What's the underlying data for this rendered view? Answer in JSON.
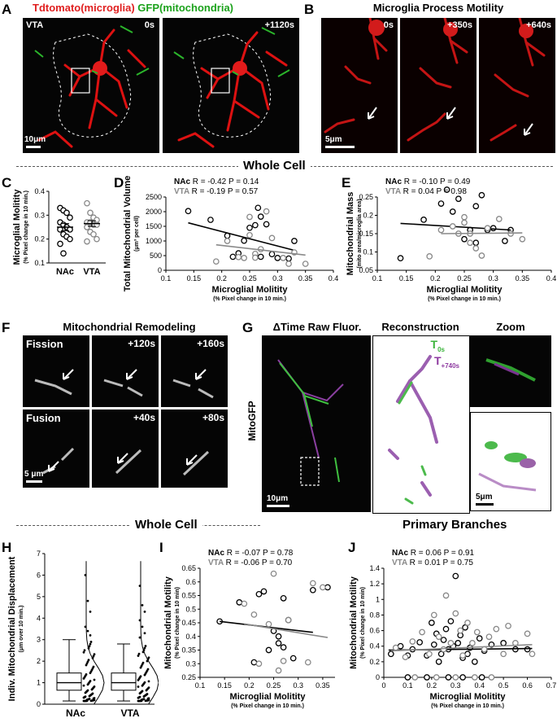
{
  "panels": {
    "A": "A",
    "B": "B",
    "C": "C",
    "D": "D",
    "E": "E",
    "F": "F",
    "G": "G",
    "H": "H",
    "I": "I",
    "J": "J"
  },
  "panelA": {
    "title_red": "Tdtomato(microglia)",
    "title_green": "GFP(mitochondria)",
    "region": "VTA",
    "t0": "0s",
    "t1": "+1120s",
    "scale": "10μm"
  },
  "panelB": {
    "title": "Microglia Process Motility",
    "times": [
      "0s",
      "+350s",
      "+640s"
    ],
    "scale": "5μm"
  },
  "sections": {
    "whole_cell_1": "Whole Cell",
    "whole_cell_2": "Whole Cell",
    "primary": "Primary Branches"
  },
  "panelF": {
    "title": "Mitochondrial Remodeling",
    "fission": "Fission",
    "fusion": "Fusion",
    "fission_times": [
      "+120s",
      "+160s"
    ],
    "fusion_times": [
      "+40s",
      "+80s"
    ],
    "scale": "5 μm"
  },
  "panelG": {
    "h1": "ΔTime Raw Fluor.",
    "h2": "Reconstruction",
    "h3": "Zoom",
    "side": "MitoGFP",
    "t_green": "T",
    "t_green_sub": "0s",
    "t_purple": "T",
    "t_purple_sub": "+740s",
    "scale": "10μm",
    "zoom_scale": "5μm"
  },
  "chart_data": [
    {
      "panel": "C",
      "type": "scatter",
      "ylabel": "Microglial Molitity",
      "ylabel_sub": "(% Pixel change in 10 min.)",
      "categories": [
        "NAc",
        "VTA"
      ],
      "ylim": [
        0.1,
        0.4
      ],
      "yticks": [
        "0.1",
        "0.2",
        "0.3",
        "0.4"
      ],
      "series": [
        {
          "name": "NAc",
          "color": "#000000",
          "values": [
            0.33,
            0.32,
            0.31,
            0.29,
            0.27,
            0.26,
            0.25,
            0.24,
            0.24,
            0.22,
            0.21,
            0.2,
            0.18,
            0.14
          ],
          "mean": 0.25,
          "sem": 0.015
        },
        {
          "name": "VTA",
          "color": "#888888",
          "values": [
            0.35,
            0.31,
            0.29,
            0.28,
            0.27,
            0.27,
            0.26,
            0.26,
            0.25,
            0.23,
            0.22,
            0.2,
            0.19
          ],
          "mean": 0.265,
          "sem": 0.012
        }
      ]
    },
    {
      "panel": "D",
      "type": "scatter",
      "title_nac": "NAc",
      "stats_nac": "R = -0.42 P = 0.14",
      "title_vta": "VTA",
      "stats_vta": "R = -0.19 P = 0.57",
      "xlabel": "Microglial Molitity",
      "xlabel_sub": "(% Pixel change in 10 min.)",
      "ylabel": "Total Mitochondrial Volume",
      "ylabel_sub": "(μm³ per cell)",
      "xlim": [
        0.1,
        0.4
      ],
      "ylim": [
        0,
        2500
      ],
      "xticks": [
        "0.1",
        "0.15",
        "0.2",
        "0.25",
        "0.3",
        "0.35",
        "0.4"
      ],
      "yticks": [
        "0",
        "500",
        "1000",
        "1500",
        "2000",
        "2500"
      ],
      "series": [
        {
          "name": "NAc",
          "color": "#000000",
          "x": [
            0.14,
            0.18,
            0.21,
            0.22,
            0.23,
            0.24,
            0.25,
            0.26,
            0.265,
            0.27,
            0.27,
            0.28,
            0.29,
            0.3,
            0.32,
            0.33
          ],
          "y": [
            2020,
            1720,
            1180,
            460,
            580,
            1010,
            1450,
            1540,
            2130,
            1830,
            460,
            1570,
            550,
            420,
            400,
            1000
          ],
          "fit": [
            [
              0.14,
              1620
            ],
            [
              0.33,
              680
            ]
          ]
        },
        {
          "name": "VTA",
          "color": "#888888",
          "x": [
            0.19,
            0.21,
            0.23,
            0.24,
            0.25,
            0.25,
            0.26,
            0.26,
            0.27,
            0.28,
            0.29,
            0.31,
            0.32,
            0.33,
            0.35
          ],
          "y": [
            300,
            1000,
            450,
            420,
            1820,
            1200,
            560,
            430,
            720,
            2010,
            1100,
            420,
            220,
            610,
            220
          ],
          "fit": [
            [
              0.19,
              870
            ],
            [
              0.35,
              520
            ]
          ]
        }
      ]
    },
    {
      "panel": "E",
      "type": "scatter",
      "title_nac": "NAc",
      "stats_nac": "R = -0.10 P = 0.49",
      "title_vta": "VTA",
      "stats_vta": "R = 0.04 P = 0.98",
      "xlabel": "Microglial Molitity",
      "xlabel_sub": "(% Pixel change in 10 min.)",
      "ylabel": "Mitochondrial Mass",
      "ylabel_sub": "(mito area/microglia area)",
      "xlim": [
        0.1,
        0.4
      ],
      "ylim": [
        0.05,
        0.25
      ],
      "xticks": [
        "0.1",
        "0.15",
        "0.2",
        "0.25",
        "0.3",
        "0.35",
        "0.4"
      ],
      "yticks": [
        "0.05",
        "0.1",
        "0.15",
        "0.2",
        "0.25"
      ],
      "series": [
        {
          "name": "NAc",
          "color": "#000000",
          "x": [
            0.14,
            0.18,
            0.21,
            0.22,
            0.23,
            0.24,
            0.25,
            0.26,
            0.27,
            0.27,
            0.28,
            0.29,
            0.3,
            0.32,
            0.33
          ],
          "y": [
            0.083,
            0.188,
            0.232,
            0.27,
            0.21,
            0.245,
            0.135,
            0.16,
            0.225,
            0.125,
            0.255,
            0.16,
            0.165,
            0.13,
            0.16
          ],
          "fit": [
            [
              0.14,
              0.178
            ],
            [
              0.33,
              0.16
            ]
          ]
        },
        {
          "name": "VTA",
          "color": "#888888",
          "x": [
            0.19,
            0.21,
            0.23,
            0.24,
            0.25,
            0.25,
            0.26,
            0.26,
            0.27,
            0.28,
            0.29,
            0.31,
            0.33,
            0.35
          ],
          "y": [
            0.088,
            0.16,
            0.17,
            0.15,
            0.195,
            0.18,
            0.15,
            0.125,
            0.11,
            0.09,
            0.165,
            0.19,
            0.15,
            0.135
          ],
          "fit": [
            [
              0.21,
              0.15
            ],
            [
              0.35,
              0.152
            ]
          ]
        }
      ]
    },
    {
      "panel": "H",
      "type": "box",
      "ylabel": "Indiv. Mitochondrial Displacement",
      "ylabel_sub": "(μm over 10 min.)",
      "categories": [
        "NAc",
        "VTA"
      ],
      "ylim": [
        0,
        7
      ],
      "yticks": [
        "0",
        "1",
        "2",
        "3",
        "4",
        "5",
        "6",
        "7"
      ],
      "boxes": [
        {
          "name": "NAc",
          "min": 0.15,
          "q1": 0.65,
          "median": 1.0,
          "q3": 1.45,
          "max": 3.0,
          "outliers": [
            6.0,
            4.8,
            4.3,
            3.6,
            3.4,
            3.2
          ]
        },
        {
          "name": "VTA",
          "min": 0.15,
          "q1": 0.65,
          "median": 1.0,
          "q3": 1.45,
          "max": 2.8,
          "outliers": [
            5.5,
            4.6,
            4.3,
            3.9,
            3.6,
            3.3,
            3.1
          ]
        }
      ]
    },
    {
      "panel": "I",
      "type": "scatter",
      "title_nac": "NAc",
      "stats_nac": "R = -0.07 P = 0.78",
      "title_vta": "VTA",
      "stats_vta": "R = -0.06 P = 0.70",
      "xlabel": "Microglial Molitity",
      "xlabel_sub": "(% Pixel change in 10 min.)",
      "ylabel": "Mitochondrial Motility",
      "ylabel_sub": "(% Pixel change in 10 min)",
      "xlim": [
        0.1,
        0.375
      ],
      "ylim": [
        0.25,
        0.65
      ],
      "xticks": [
        "0.1",
        "0.15",
        "0.2",
        "0.25",
        "0.3",
        "0.35"
      ],
      "yticks": [
        "0.25",
        "0.3",
        "0.35",
        "0.4",
        "0.45",
        "0.5",
        "0.55",
        "0.6",
        "0.65"
      ],
      "series": [
        {
          "name": "NAc",
          "color": "#000000",
          "x": [
            0.14,
            0.18,
            0.21,
            0.22,
            0.23,
            0.24,
            0.25,
            0.26,
            0.26,
            0.27,
            0.27,
            0.28,
            0.29,
            0.33,
            0.36
          ],
          "y": [
            0.455,
            0.525,
            0.305,
            0.555,
            0.565,
            0.35,
            0.42,
            0.4,
            0.375,
            0.36,
            0.54,
            0.46,
            0.32,
            0.57,
            0.58
          ],
          "fit": [
            [
              0.14,
              0.455
            ],
            [
              0.33,
              0.415
            ]
          ]
        },
        {
          "name": "VTA",
          "color": "#888888",
          "x": [
            0.19,
            0.21,
            0.22,
            0.24,
            0.25,
            0.26,
            0.27,
            0.28,
            0.32,
            0.33,
            0.35
          ],
          "y": [
            0.52,
            0.48,
            0.3,
            0.445,
            0.63,
            0.275,
            0.31,
            0.46,
            0.305,
            0.595,
            0.58
          ],
          "fit": [
            [
              0.19,
              0.446
            ],
            [
              0.36,
              0.396
            ]
          ]
        }
      ]
    },
    {
      "panel": "J",
      "type": "scatter",
      "title_nac": "NAc",
      "stats_nac": "R = 0.06 P = 0.91",
      "title_vta": "VTA",
      "stats_vta": "R = 0.01 P = 0.75",
      "xlabel": "Microglial Molitity",
      "xlabel_sub": "(% Pixel change in 10 min.)",
      "ylabel": "Mitochondrial Motility",
      "ylabel_sub": "(% Pixel change in 10 min)",
      "xlim": [
        0,
        0.7
      ],
      "ylim": [
        0,
        1.4
      ],
      "xticks": [
        "0",
        "0.1",
        "0.2",
        "0.3",
        "0.4",
        "0.5",
        "0.6",
        "0.7"
      ],
      "yticks": [
        "0",
        "0.2",
        "0.4",
        "0.6",
        "0.8",
        "1",
        "1.2",
        "1.4"
      ],
      "series": [
        {
          "name": "NAc",
          "color": "#000000",
          "x": [
            0.03,
            0.07,
            0.1,
            0.12,
            0.15,
            0.18,
            0.2,
            0.21,
            0.22,
            0.23,
            0.24,
            0.25,
            0.26,
            0.27,
            0.28,
            0.29,
            0.3,
            0.31,
            0.32,
            0.33,
            0.34,
            0.35,
            0.36,
            0.38,
            0.4,
            0.42,
            0.45,
            0.5,
            0.55,
            0.6,
            0.1,
            0.18,
            0.27,
            0.33,
            0.41
          ],
          "y": [
            0.3,
            0.4,
            0.28,
            0.36,
            0.45,
            0.28,
            0.7,
            0.42,
            0.56,
            0.2,
            0.3,
            0.48,
            0.62,
            0.36,
            0.72,
            0.4,
            1.3,
            0.44,
            0.54,
            0.25,
            0.64,
            0.3,
            0.38,
            0.2,
            0.5,
            0.34,
            0.42,
            0.44,
            0.36,
            0.36,
            0.0,
            0.0,
            0.0,
            0.0,
            0.0
          ],
          "fit": [
            [
              0.02,
              0.35
            ],
            [
              0.62,
              0.37
            ]
          ]
        },
        {
          "name": "VTA",
          "color": "#888888",
          "x": [
            0.05,
            0.09,
            0.12,
            0.16,
            0.19,
            0.21,
            0.23,
            0.25,
            0.26,
            0.28,
            0.3,
            0.32,
            0.33,
            0.35,
            0.37,
            0.39,
            0.42,
            0.44,
            0.47,
            0.5,
            0.52,
            0.55,
            0.6,
            0.62,
            0.13,
            0.22,
            0.3,
            0.38,
            0.45
          ],
          "y": [
            0.38,
            0.26,
            0.46,
            0.58,
            0.3,
            0.8,
            0.52,
            0.36,
            1.05,
            0.44,
            0.82,
            0.6,
            0.28,
            0.7,
            0.44,
            0.58,
            0.36,
            0.52,
            0.62,
            0.3,
            0.66,
            0.44,
            0.56,
            0.3,
            0.0,
            0.0,
            0.0,
            0.0,
            0.0
          ],
          "fit": [
            [
              0.03,
              0.34
            ],
            [
              0.62,
              0.42
            ]
          ]
        }
      ]
    }
  ]
}
